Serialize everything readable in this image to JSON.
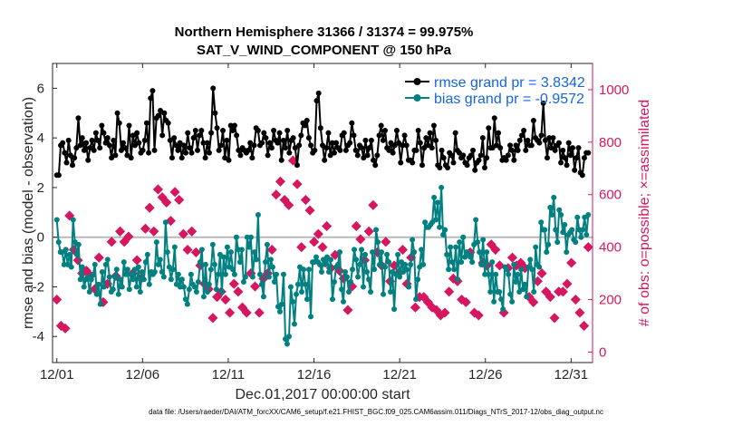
{
  "title_line1": "Northern Hemisphere 31366 / 31374 = 99.975%",
  "title_line2": "SAT_V_WIND_COMPONENT @ 150 hPa",
  "footer_text": "data file: /Users/raeder/DAI/ATM_forcXX/CAM6_setup/f.e21.FHIST_BGC.f09_025.CAM6assim.011/Diags_NTrS_2017-12/obs_diag_output.nc",
  "colors": {
    "rmse": "#000000",
    "bias": "#008080",
    "obs": "#d6175f",
    "legend_text": "#1565e0",
    "zero_line": "#b8b8b8"
  },
  "chart_data": {
    "type": "line",
    "xlabel": "Dec.01,2017 00:00:00 start",
    "ylabel_left": "rmse and bias (model - observation)",
    "ylabel_right": "# of obs: o=possible; ×=assimilated",
    "x_ticks": [
      "12/01",
      "12/06",
      "12/11",
      "12/16",
      "12/21",
      "12/26",
      "12/31"
    ],
    "x_tick_days": [
      0,
      5,
      10,
      15,
      20,
      25,
      30
    ],
    "xlim_days": [
      -0.25,
      31.25
    ],
    "y_left_ticks": [
      -4,
      -2,
      0,
      2,
      4,
      6
    ],
    "ylim_left": [
      -5.05,
      7
    ],
    "y_right_ticks": [
      0,
      200,
      400,
      600,
      800,
      1000
    ],
    "ylim_right": [
      -40,
      1100
    ],
    "legend_position": "top-right",
    "series": [
      {
        "name": "rmse grand pr = 3.8342",
        "color": "#000000",
        "axis": "left",
        "values": [
          2.5,
          2.5,
          3.7,
          3.8,
          3.4,
          3.0,
          3.9,
          3.3,
          2.9,
          3.2,
          3.6,
          4.8,
          3.7,
          4.0,
          3.5,
          3.8,
          3.1,
          3.6,
          3.9,
          3.5,
          4.2,
          3.9,
          3.6,
          4.5,
          4.2,
          3.8,
          4.0,
          3.7,
          3.2,
          3.9,
          3.3,
          5.0,
          4.6,
          3.5,
          3.8,
          3.6,
          3.3,
          4.5,
          3.2,
          4.1,
          3.7,
          4.2,
          3.8,
          3.4,
          3.5,
          3.9,
          4.6,
          3.4,
          5.6,
          5.9,
          3.5,
          4.8,
          4.9,
          5.1,
          4.1,
          5.0,
          4.7,
          4.6,
          3.9,
          3.2,
          4.0,
          3.7,
          3.5,
          3.8,
          3.2,
          3.7,
          3.4,
          4.2,
          3.6,
          3.4,
          4.0,
          4.3,
          3.5,
          4.1,
          4.3,
          3.8,
          3.2,
          3.8,
          3.4,
          4.2,
          6.0,
          5.0,
          4.4,
          3.5,
          3.7,
          4.3,
          3.2,
          3.9,
          3.1,
          4.5,
          4.3,
          4.5,
          4.1,
          3.5,
          3.3,
          3.6,
          3.5,
          3.4,
          3.5,
          3.8,
          3.2,
          3.7,
          4.4,
          4.3,
          3.7,
          3.8,
          4.2,
          4.0,
          3.3,
          3.8,
          3.6,
          4.3,
          3.9,
          3.8,
          4.2,
          3.1,
          3.9,
          3.6,
          4.3,
          3.4,
          3.9,
          4.0,
          3.6,
          2.9,
          3.7,
          4.1,
          4.6,
          4.5,
          4.7,
          4.0,
          3.7,
          3.4,
          3.5,
          5.5,
          5.8,
          4.4,
          3.7,
          3.1,
          3.6,
          4.2,
          3.3,
          3.8,
          3.4,
          3.8,
          3.6,
          3.5,
          4.1,
          4.2,
          3.5,
          3.7,
          3.8,
          4.6,
          4.1,
          3.5,
          3.3,
          3.7,
          3.6,
          3.2,
          3.9,
          3.3,
          3.6,
          3.9,
          3.1,
          2.9,
          3.3,
          4.1,
          4.5,
          3.9,
          4.3,
          3.6,
          3.5,
          3.8,
          3.4,
          3.7,
          4.3,
          3.8,
          3.0,
          3.7,
          4.1,
          3.7,
          3.1,
          3.1,
          3.0,
          3.5,
          3.5,
          4.3,
          3.8,
          2.9,
          3.6,
          4.0,
          3.7,
          4.2,
          3.6,
          4.5,
          3.9,
          2.9,
          2.8,
          3.5,
          3.2,
          2.9,
          2.8,
          3.4,
          3.3,
          3.0,
          4.2,
          3.5,
          3.4,
          3.2,
          3.3,
          3.0,
          2.9,
          3.2,
          3.3,
          3.5,
          2.7,
          3.0,
          3.1,
          3.3,
          4.0,
          2.8,
          3.2,
          4.4,
          3.6,
          3.6,
          4.8,
          3.7,
          4.2,
          3.6,
          3.1,
          3.2,
          3.1,
          3.3,
          3.7,
          3.5,
          3.1,
          3.7,
          3.5,
          3.9,
          4.1,
          4.3,
          3.5,
          3.9,
          3.7,
          3.7,
          4.7,
          4.0,
          3.9,
          3.8,
          4.1,
          5.4,
          3.9,
          3.2,
          4.0,
          3.6,
          4.0,
          3.5,
          3.7,
          3.8,
          3.0,
          3.5,
          3.2,
          2.9,
          3.8,
          3.3,
          3.6,
          2.7,
          3.2,
          3.6,
          2.6,
          2.5,
          3.2,
          3.4,
          3.4
        ]
      },
      {
        "name": "bias grand pr = -0.9572",
        "color": "#008080",
        "axis": "left",
        "values": [
          0.7,
          -0.2,
          -0.6,
          -0.6,
          -1.1,
          -0.5,
          -1.1,
          -0.7,
          -1.2,
          0.7,
          -0.2,
          -0.7,
          -0.3,
          -1.7,
          -1.2,
          -2.0,
          -1.7,
          -1.6,
          -2.2,
          -1.7,
          -1.5,
          -1.1,
          -2.3,
          -1.9,
          -2.7,
          -1.4,
          -2.0,
          -1.1,
          -0.9,
          -1.6,
          -2.2,
          -2.1,
          -1.6,
          -1.3,
          -2.3,
          -1.7,
          -2.0,
          -1.0,
          -1.5,
          -1.3,
          -2.1,
          -1.5,
          -1.7,
          -1.3,
          -2.0,
          -1.2,
          -2.2,
          -1.4,
          -1.7,
          -1.0,
          -0.7,
          -1.9,
          -1.4,
          -1.5,
          -1.4,
          -0.2,
          -1.1,
          -0.9,
          -1.4,
          -1.6,
          0.6,
          -0.6,
          -1.2,
          -1.7,
          -1.3,
          -0.4,
          -1.9,
          -1.5,
          -2.0,
          -1.7,
          -2.0,
          -2.5,
          -2.7,
          -2.1,
          -1.5,
          -1.9,
          -2.0,
          -2.2,
          -1.8,
          -1.0,
          -0.5,
          -2.4,
          -1.1,
          -2.2,
          -1.9,
          -1.3,
          -0.3,
          -1.1,
          -2.1,
          -1.5,
          -0.7,
          -2.2,
          -0.8,
          -1.5,
          -0.4,
          -1.2,
          -0.6,
          -1.3,
          -1.5,
          0.0,
          -0.5,
          -1.0,
          -0.5,
          -1.8,
          -1.6,
          0.0,
          -0.4,
          0.0,
          -1.6,
          -0.6,
          -0.9,
          0.9,
          -1.5,
          -1.9,
          -2.4,
          -1.0,
          -0.3,
          -1.6,
          -0.9,
          -1.2,
          -1.8,
          -1.5,
          -2.8,
          -3.0,
          -2.7,
          -1.5,
          -4.1,
          -4.3,
          -4.0,
          -2.0,
          -2.6,
          -3.5,
          -2.3,
          -1.9,
          -1.2,
          -2.2,
          -1.3,
          -1.9,
          -2.5,
          -1.3,
          -3.2,
          -1.0,
          -1.0,
          -0.8,
          -1.0,
          -1.1,
          -1.4,
          -0.9,
          -1.1,
          -0.8,
          -1.4,
          -0.9,
          -2.5,
          -1.8,
          -1.2,
          -1.1,
          -0.6,
          -2.1,
          -2.6,
          -1.4,
          -1.6,
          -2.2,
          -1.8,
          -1.3,
          -0.5,
          -0.9,
          -1.6,
          -1.1,
          -0.5,
          -2.0,
          -0.7,
          -1.4,
          -1.7,
          -2.2,
          -0.6,
          -1.3,
          0.3,
          -0.2,
          -1.1,
          -0.6,
          -2.3,
          -1.2,
          -0.7,
          -1.0,
          -2.2,
          -1.4,
          -2.9,
          -1.5,
          -0.7,
          -1.6,
          -1.0,
          -1.4,
          -1.1,
          -1.3,
          -2.0,
          -1.1,
          -0.1,
          -0.6,
          -2.5,
          -1.7,
          -1.2,
          -0.5,
          -1.1,
          0.6,
          0.4,
          0.4,
          0.5,
          0.6,
          1.6,
          0.7,
          1.4,
          0.4,
          2.0,
          0.1,
          0.3,
          -0.7,
          -1.3,
          -0.4,
          -1.0,
          -1.3,
          -0.4,
          -1.7,
          -0.2,
          -1.0,
          0.0,
          -0.8,
          -0.6,
          -0.7,
          -0.8,
          -1.0,
          -0.3,
          0.7,
          -0.2,
          -0.6,
          -1.1,
          -0.1,
          -1.5,
          -0.6,
          -1.5,
          -2.2,
          -1.0,
          -2.6,
          -1.5,
          -2.2,
          -2.2,
          -2.5,
          -2.9,
          -1.2,
          -1.3,
          -1.5,
          -2.3,
          -2.6,
          -1.1,
          -1.8,
          -1.5,
          -2.2,
          -1.3,
          -2.1,
          -1.9,
          -2.4,
          -1.2,
          -0.9,
          -1.3,
          -2.2,
          -0.4,
          -1.1,
          -1.2,
          0.6,
          0.3,
          0.3,
          -0.6,
          -0.3,
          1.2,
          0.9,
          1.6,
          0.3,
          -0.2,
          1.1,
          0.9,
          0.2,
          0.5,
          -0.6,
          0.1,
          0.2,
          0.3,
          -0.1,
          -0.2,
          0.8,
          0.3,
          0.0,
          0.3,
          0.8,
          0.1,
          0.9
        ]
      },
      {
        "name": "# of obs possible",
        "color": "#d6175f",
        "axis": "right",
        "marker": "o",
        "values": [
          200,
          100,
          90,
          520,
          390,
          350,
          300,
          310,
          290,
          240,
          360,
          190,
          260,
          420,
          290,
          460,
          420,
          440,
          300,
          350,
          280,
          470,
          550,
          460,
          620,
          590,
          570,
          500,
          610,
          580,
          450,
          390,
          460,
          380,
          330,
          260,
          240,
          130,
          210,
          230,
          200,
          150,
          260,
          230,
          170,
          150,
          300,
          250,
          150,
          280,
          300,
          390,
          600,
          650,
          580,
          560,
          730,
          640,
          400,
          580,
          540,
          420,
          450,
          400,
          480,
          320,
          370,
          310,
          280,
          160,
          250,
          480,
          430,
          350,
          460,
          560,
          380,
          330,
          420,
          270,
          330,
          300,
          390,
          260,
          360,
          170,
          210,
          210,
          190,
          170,
          160,
          140,
          150,
          230,
          280,
          270,
          200,
          190,
          380,
          150,
          140,
          340,
          330,
          410,
          390,
          330,
          150,
          320,
          360,
          330,
          340,
          320,
          210,
          190,
          270,
          300,
          230,
          210,
          130,
          230,
          230,
          260,
          340,
          200,
          150,
          100,
          400
        ]
      }
    ],
    "right_axis_markers_series_note": "",
    "gray_zero_line": 0
  }
}
